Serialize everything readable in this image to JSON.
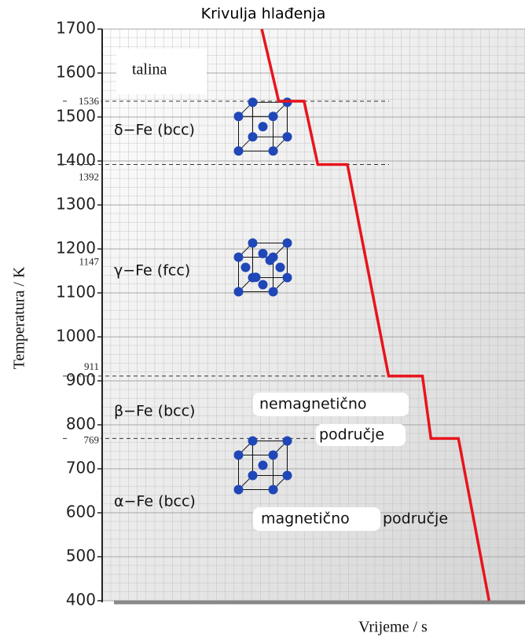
{
  "chart_data": {
    "type": "line",
    "title": "Krivulja hlađenja",
    "xlabel": "Vrijeme / s",
    "ylabel": "Temperatura / K",
    "xlim": [
      0,
      40
    ],
    "ylim": [
      400,
      1700
    ],
    "yticks": [
      400,
      500,
      600,
      700,
      800,
      900,
      1000,
      1100,
      1200,
      1300,
      1400,
      1500,
      1600,
      1700
    ],
    "grid": true,
    "series": [
      {
        "color": "#e8141c",
        "x": [
          15.1,
          16.7,
          19.1,
          20.4,
          23.2,
          27.1,
          30.3,
          31.1,
          33.7,
          36.6
        ],
        "values": [
          1700,
          1536,
          1536,
          1392,
          1392,
          911,
          911,
          769,
          769,
          400
        ]
      }
    ],
    "marked_temps": [
      1536,
      1392,
      1147,
      911,
      769
    ],
    "dashed": [
      true,
      true,
      false,
      true,
      true
    ],
    "phases": [
      {
        "label": "δ−Fe (bcc)",
        "value": 1470
      },
      {
        "label": "γ−Fe (fcc)",
        "value": 1150
      },
      {
        "label": "β−Fe (bcc)",
        "value": 830
      },
      {
        "label": "α−Fe (bcc)",
        "value": 625
      }
    ],
    "annotations": [
      "talina",
      "nemagnetično",
      "područje",
      "magnetično",
      "područje"
    ]
  }
}
